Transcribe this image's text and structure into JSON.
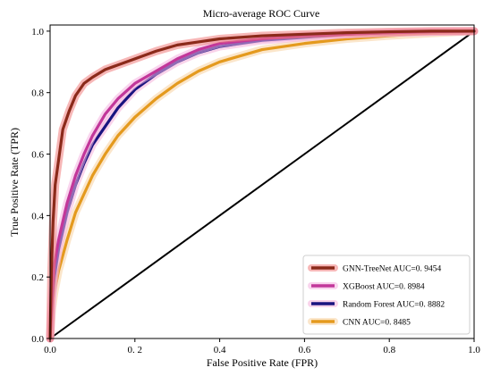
{
  "chart_data": {
    "type": "line",
    "title": "Micro-average ROC Curve",
    "xlabel": "False Positive Rate (FPR)",
    "ylabel": "True Positive Rate (TPR)",
    "xlim": [
      0,
      1
    ],
    "ylim": [
      0,
      1.02
    ],
    "x_ticks": [
      0,
      0.2,
      0.4,
      0.6,
      0.8,
      1.0
    ],
    "x_tick_labels": [
      "0.0",
      "0. 2",
      "0.4",
      "0.6",
      "0.8",
      "1.0"
    ],
    "y_ticks": [
      0,
      0.2,
      0.4,
      0.6,
      0.8,
      1.0
    ],
    "y_tick_labels": [
      "0.0",
      "0.2",
      "0.4",
      "0.6",
      "0.8",
      "1.0"
    ],
    "grid": false,
    "legend_position": "bottom-right",
    "series": [
      {
        "name": "GNN-TreeNet AUC=0. 9454",
        "color": "#8B2A1A",
        "halo": "#f07c7c",
        "x": [
          0,
          0.003,
          0.007,
          0.012,
          0.02,
          0.03,
          0.045,
          0.06,
          0.08,
          0.1,
          0.13,
          0.16,
          0.2,
          0.25,
          0.3,
          0.35,
          0.4,
          0.5,
          0.6,
          0.7,
          0.8,
          0.9,
          1.0
        ],
        "y": [
          0,
          0.22,
          0.38,
          0.5,
          0.58,
          0.68,
          0.74,
          0.79,
          0.83,
          0.85,
          0.875,
          0.89,
          0.91,
          0.935,
          0.955,
          0.965,
          0.975,
          0.985,
          0.99,
          0.995,
          0.998,
          1.0,
          1.0
        ]
      },
      {
        "name": "XGBoost AUC=0. 8984",
        "color": "#C2379A",
        "halo": "#f4b2e0",
        "x": [
          0,
          0.005,
          0.01,
          0.02,
          0.04,
          0.06,
          0.08,
          0.1,
          0.13,
          0.16,
          0.2,
          0.25,
          0.3,
          0.35,
          0.4,
          0.5,
          0.6,
          0.7,
          0.8,
          0.9,
          1.0
        ],
        "y": [
          0,
          0.15,
          0.24,
          0.32,
          0.44,
          0.53,
          0.6,
          0.66,
          0.73,
          0.78,
          0.83,
          0.87,
          0.91,
          0.94,
          0.96,
          0.975,
          0.985,
          0.99,
          0.995,
          0.998,
          1.0
        ]
      },
      {
        "name": "Random Forest AUC=0. 8882",
        "color": "#1A1480",
        "halo": "#f6b0da",
        "x": [
          0,
          0.005,
          0.01,
          0.02,
          0.04,
          0.06,
          0.08,
          0.1,
          0.13,
          0.16,
          0.2,
          0.25,
          0.3,
          0.35,
          0.4,
          0.5,
          0.6,
          0.7,
          0.8,
          0.9,
          1.0
        ],
        "y": [
          0,
          0.13,
          0.2,
          0.29,
          0.41,
          0.5,
          0.57,
          0.63,
          0.69,
          0.75,
          0.81,
          0.86,
          0.9,
          0.93,
          0.95,
          0.97,
          0.98,
          0.99,
          0.995,
          0.998,
          1.0
        ]
      },
      {
        "name": "CNN AUC=0. 8485",
        "color": "#E49A1E",
        "halo": "#f8d2a0",
        "x": [
          0,
          0.005,
          0.01,
          0.02,
          0.04,
          0.06,
          0.08,
          0.1,
          0.13,
          0.16,
          0.2,
          0.25,
          0.3,
          0.35,
          0.4,
          0.5,
          0.6,
          0.7,
          0.8,
          0.9,
          1.0
        ],
        "y": [
          0,
          0.1,
          0.15,
          0.22,
          0.32,
          0.41,
          0.47,
          0.53,
          0.6,
          0.66,
          0.72,
          0.78,
          0.83,
          0.87,
          0.9,
          0.94,
          0.96,
          0.975,
          0.985,
          0.993,
          1.0
        ]
      }
    ],
    "diagonal": {
      "color": "#000000",
      "x": [
        0,
        1
      ],
      "y": [
        0,
        1
      ]
    }
  }
}
